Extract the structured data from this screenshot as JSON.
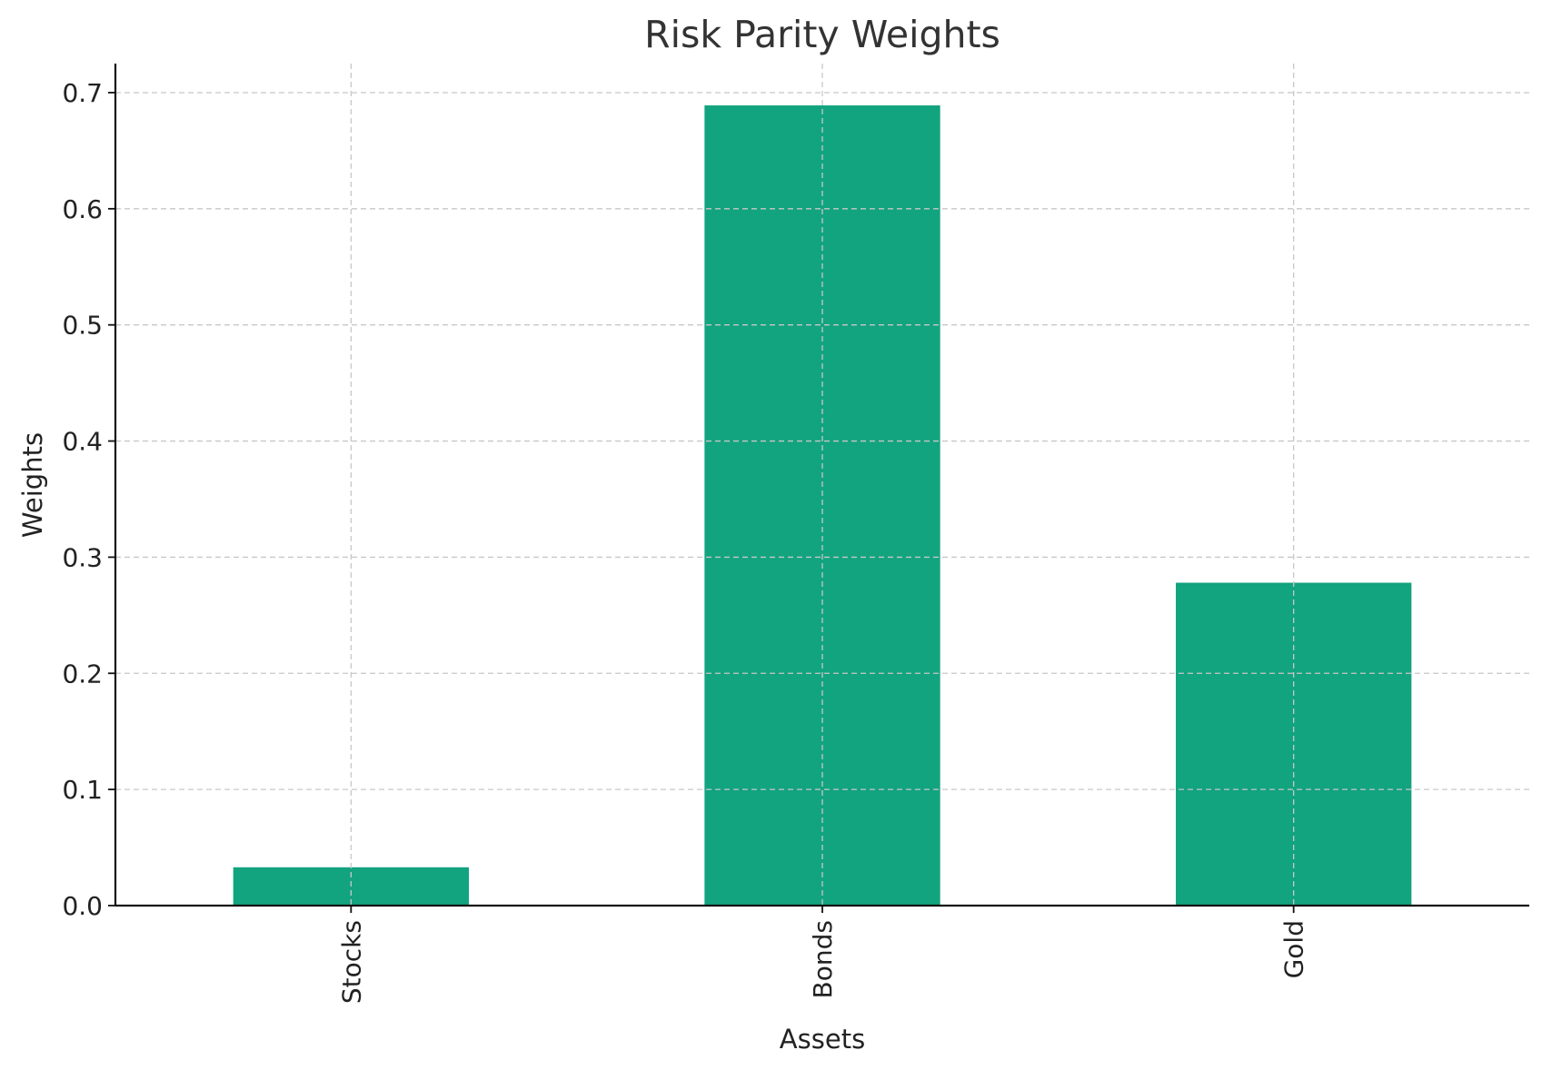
{
  "chart_data": {
    "type": "bar",
    "title": "Risk Parity Weights",
    "xlabel": "Assets",
    "ylabel": "Weights",
    "categories": [
      "Stocks",
      "Bonds",
      "Gold"
    ],
    "values": [
      0.033,
      0.689,
      0.278
    ],
    "ylim": [
      0,
      0.725
    ],
    "yticks": [
      0.0,
      0.1,
      0.2,
      0.3,
      0.4,
      0.5,
      0.6,
      0.7
    ],
    "ytick_labels": [
      "0.0",
      "0.1",
      "0.2",
      "0.3",
      "0.4",
      "0.5",
      "0.6",
      "0.7"
    ],
    "grid": true,
    "legend": "none",
    "bar_color": "#12a37f"
  }
}
